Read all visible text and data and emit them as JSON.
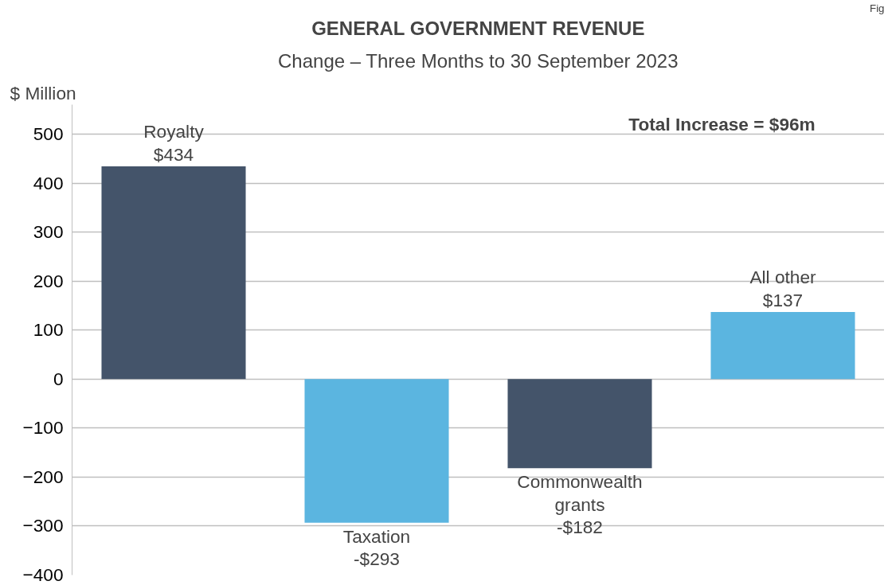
{
  "chart_data": {
    "type": "bar",
    "title": "GENERAL GOVERNMENT REVENUE",
    "subtitle": "Change – Three Months to 30 September 2023",
    "ylabel": "$ Million",
    "categories": [
      "Royalty",
      "Taxation",
      "Commonwealth grants",
      "All other"
    ],
    "values": [
      434,
      -293,
      -182,
      137
    ],
    "colors": [
      "#44546a",
      "#5bb5e0",
      "#44546a",
      "#5bb5e0"
    ],
    "value_labels": [
      "$434",
      "-$293",
      "-$182",
      "$137"
    ],
    "annotations": [
      "Total Increase = $96m",
      "Fig"
    ],
    "ylim": [
      -400,
      560
    ],
    "yticks": [
      -400,
      -300,
      -200,
      -100,
      0,
      100,
      200,
      300,
      400,
      500
    ],
    "grid": "y",
    "tick_labels": "y"
  }
}
